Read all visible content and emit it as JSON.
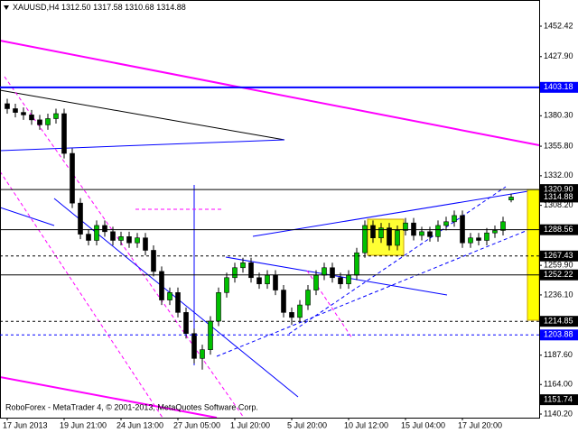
{
  "chart_data": {
    "type": "candlestick",
    "symbol": "XAUUSD,H4",
    "quote": [
      "1312.50",
      "1317.58",
      "1310.68",
      "1314.88"
    ],
    "footer": "RoboForex - MetaTrader 4, © 2001-2013, MetaQuotes Software Corp.",
    "categories": [
      "17 Jun 2013",
      null,
      null,
      null,
      null,
      null,
      null,
      "19 Jun 21:00",
      null,
      null,
      null,
      null,
      null,
      null,
      "24 Jun 13:00",
      null,
      null,
      null,
      null,
      null,
      null,
      "27 Jun 05:00",
      null,
      null,
      null,
      null,
      null,
      null,
      "1 Jul 20:00",
      null,
      null,
      null,
      null,
      null,
      null,
      "5 Jul 20:00",
      null,
      null,
      null,
      null,
      null,
      null,
      "10 Jul 12:00",
      null,
      null,
      null,
      null,
      null,
      null,
      "15 Jul 04:00",
      null,
      null,
      null,
      null,
      null,
      null,
      "17 Jul 20:00",
      null,
      null,
      null,
      null,
      null,
      null
    ],
    "open": [
      1390,
      1386,
      1383,
      1381,
      1377,
      1373,
      1378,
      1382,
      1350,
      1310,
      1285,
      1280,
      1292,
      1287,
      1280,
      1283,
      1278,
      1282,
      1272,
      1255,
      1232,
      1238,
      1222,
      1205,
      1185,
      1192,
      1215,
      1238,
      1250,
      1258,
      1262,
      1250,
      1245,
      1252,
      1240,
      1222,
      1218,
      1228,
      1240,
      1252,
      1258,
      1250,
      1245,
      1252,
      1270,
      1292,
      1282,
      1290,
      1276,
      1288,
      1294,
      1284,
      1287,
      1283,
      1292,
      1295,
      1300,
      1278,
      1282,
      1280,
      1286,
      1288,
      1312.5
    ],
    "high": [
      1394,
      1390,
      1387,
      1385,
      1381,
      1382,
      1386,
      1386,
      1354,
      1314,
      1289,
      1296,
      1296,
      1291,
      1287,
      1287,
      1286,
      1286,
      1276,
      1259,
      1242,
      1242,
      1226,
      1209,
      1196,
      1219,
      1242,
      1254,
      1262,
      1266,
      1266,
      1254,
      1256,
      1256,
      1244,
      1226,
      1232,
      1244,
      1256,
      1262,
      1262,
      1254,
      1256,
      1274,
      1296,
      1296,
      1294,
      1294,
      1292,
      1298,
      1298,
      1291,
      1291,
      1296,
      1299,
      1304,
      1304,
      1286,
      1286,
      1290,
      1292,
      1299,
      1317.58
    ],
    "low": [
      1382,
      1379,
      1377,
      1373,
      1369,
      1369,
      1374,
      1346,
      1306,
      1281,
      1276,
      1276,
      1283,
      1276,
      1276,
      1274,
      1274,
      1268,
      1251,
      1228,
      1228,
      1218,
      1201,
      1181,
      1176,
      1188,
      1211,
      1234,
      1246,
      1254,
      1246,
      1241,
      1241,
      1236,
      1218,
      1212,
      1214,
      1224,
      1236,
      1248,
      1246,
      1241,
      1241,
      1248,
      1266,
      1278,
      1278,
      1272,
      1272,
      1284,
      1280,
      1280,
      1279,
      1279,
      1288,
      1291,
      1274,
      1274,
      1276,
      1276,
      1282,
      1284,
      1310.68
    ],
    "close": [
      1386,
      1383,
      1381,
      1377,
      1373,
      1378,
      1382,
      1350,
      1310,
      1285,
      1280,
      1292,
      1287,
      1280,
      1283,
      1278,
      1282,
      1272,
      1255,
      1232,
      1238,
      1222,
      1205,
      1185,
      1192,
      1215,
      1238,
      1250,
      1258,
      1262,
      1250,
      1245,
      1252,
      1240,
      1222,
      1218,
      1228,
      1240,
      1252,
      1258,
      1250,
      1245,
      1252,
      1270,
      1292,
      1282,
      1290,
      1276,
      1288,
      1294,
      1284,
      1287,
      1283,
      1292,
      1295,
      1300,
      1278,
      1282,
      1280,
      1286,
      1288,
      1295,
      1314.88
    ],
    "up_color": "#00c000",
    "down_color": "#000000",
    "ylim": [
      1137.3,
      1473.48
    ],
    "yticks": [
      {
        "value": 1452.42,
        "label": "1452.42"
      },
      {
        "value": 1427.9,
        "label": "1427.90"
      },
      {
        "value": 1380.3,
        "label": "1380.30"
      },
      {
        "value": 1355.8,
        "label": "1355.80"
      },
      {
        "value": 1332,
        "label": "1332.00"
      },
      {
        "value": 1308.2,
        "label": "1308.20"
      },
      {
        "value": 1259.9,
        "label": "1259.90"
      },
      {
        "value": 1236.1,
        "label": "1236.10"
      },
      {
        "value": 1187.6,
        "label": "1187.60"
      },
      {
        "value": 1164,
        "label": "1164.00"
      },
      {
        "value": 1140.2,
        "label": "1140.20"
      }
    ],
    "levels": [
      {
        "value": 1403.18,
        "label": "1403.18",
        "color": "#0000ff",
        "style": "solid"
      },
      {
        "value": 1320.9,
        "label": "1320.90",
        "color": "#000000",
        "style": "solid"
      },
      {
        "value": 1314.88,
        "label": "1314.88",
        "color": "#000000",
        "style": "none"
      },
      {
        "value": 1288.56,
        "label": "1288.56",
        "color": "#000000",
        "style": "solid"
      },
      {
        "value": 1267.43,
        "label": "1267.43",
        "color": "#000000",
        "style": "dashed"
      },
      {
        "value": 1252.22,
        "label": "1252.22",
        "color": "#000000",
        "style": "solid"
      },
      {
        "value": 1214.85,
        "label": "1214.85",
        "color": "#000000",
        "style": "dashed"
      },
      {
        "value": 1203.88,
        "label": "1203.88",
        "color": "#0000ff",
        "style": "dashed"
      },
      {
        "value": 1151.74,
        "label": "1151.74",
        "color": "#000000",
        "style": "none"
      }
    ]
  }
}
